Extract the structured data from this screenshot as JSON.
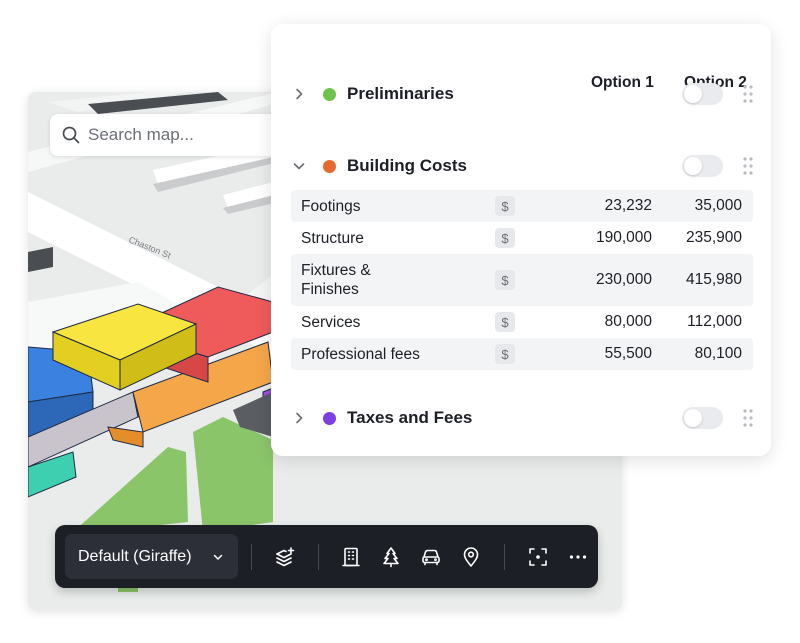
{
  "map": {
    "search_placeholder": "Search map...",
    "street_label": "Chaston St"
  },
  "toolbar": {
    "style_select_value": "Default (Giraffe)",
    "buttons": [
      {
        "icon": "layers-add-icon"
      },
      {
        "icon": "building-icon"
      },
      {
        "icon": "tree-icon"
      },
      {
        "icon": "car-icon"
      },
      {
        "icon": "location-pin-icon"
      },
      {
        "icon": "focus-frame-icon"
      },
      {
        "icon": "more-horizontal-icon"
      }
    ]
  },
  "panel": {
    "columns": [
      "Option 1",
      "Option 2"
    ],
    "sections": {
      "preliminaries": {
        "title": "Preliminaries",
        "color": "#6cc24a",
        "expanded": false
      },
      "building_costs": {
        "title": "Building Costs",
        "color": "#e8692d",
        "expanded": true
      },
      "taxes_fees": {
        "title": "Taxes and Fees",
        "color": "#7b3fe4",
        "expanded": false
      }
    },
    "currency_symbol": "$",
    "rows": [
      {
        "name": "Footings",
        "v1": "23,232",
        "v2": "35,000"
      },
      {
        "name": "Structure",
        "v1": "190,000",
        "v2": "235,900"
      },
      {
        "name": "Fixtures & Finishes",
        "v1": "230,000",
        "v2": "415,980"
      },
      {
        "name": "Services",
        "v1": "80,000",
        "v2": "112,000"
      },
      {
        "name": "Professional fees",
        "v1": "55,500",
        "v2": "80,100"
      }
    ]
  }
}
